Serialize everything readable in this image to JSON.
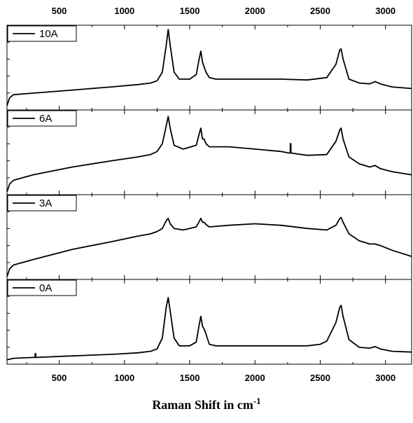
{
  "chart_data": {
    "type": "line",
    "xlabel_main": "Raman Shift in cm",
    "xlabel_sup": "-1",
    "xlim": [
      100,
      3200
    ],
    "xticks": [
      500,
      1000,
      1500,
      2000,
      2500,
      3000
    ],
    "grid": false,
    "legend_placement": "top-left",
    "panels": [
      {
        "name": "10A",
        "points": [
          [
            100,
            0.02
          ],
          [
            120,
            0.12
          ],
          [
            150,
            0.16
          ],
          [
            300,
            0.18
          ],
          [
            600,
            0.22
          ],
          [
            900,
            0.26
          ],
          [
            1100,
            0.29
          ],
          [
            1200,
            0.31
          ],
          [
            1250,
            0.34
          ],
          [
            1290,
            0.45
          ],
          [
            1320,
            0.8
          ],
          [
            1335,
            1.0
          ],
          [
            1350,
            0.8
          ],
          [
            1380,
            0.45
          ],
          [
            1420,
            0.36
          ],
          [
            1500,
            0.36
          ],
          [
            1550,
            0.42
          ],
          [
            1570,
            0.6
          ],
          [
            1585,
            0.72
          ],
          [
            1598,
            0.58
          ],
          [
            1610,
            0.52
          ],
          [
            1625,
            0.45
          ],
          [
            1650,
            0.38
          ],
          [
            1700,
            0.36
          ],
          [
            1800,
            0.36
          ],
          [
            2000,
            0.36
          ],
          [
            2200,
            0.36
          ],
          [
            2400,
            0.35
          ],
          [
            2550,
            0.38
          ],
          [
            2620,
            0.55
          ],
          [
            2650,
            0.74
          ],
          [
            2660,
            0.75
          ],
          [
            2675,
            0.62
          ],
          [
            2720,
            0.36
          ],
          [
            2800,
            0.31
          ],
          [
            2880,
            0.3
          ],
          [
            2920,
            0.33
          ],
          [
            2960,
            0.3
          ],
          [
            3050,
            0.26
          ],
          [
            3200,
            0.24
          ]
        ]
      },
      {
        "name": "6A",
        "points": [
          [
            100,
            0.0
          ],
          [
            120,
            0.1
          ],
          [
            150,
            0.15
          ],
          [
            300,
            0.22
          ],
          [
            600,
            0.32
          ],
          [
            900,
            0.4
          ],
          [
            1100,
            0.45
          ],
          [
            1200,
            0.48
          ],
          [
            1250,
            0.52
          ],
          [
            1290,
            0.62
          ],
          [
            1320,
            0.85
          ],
          [
            1335,
            0.97
          ],
          [
            1350,
            0.82
          ],
          [
            1380,
            0.6
          ],
          [
            1450,
            0.55
          ],
          [
            1550,
            0.6
          ],
          [
            1570,
            0.73
          ],
          [
            1585,
            0.82
          ],
          [
            1598,
            0.68
          ],
          [
            1610,
            0.68
          ],
          [
            1625,
            0.62
          ],
          [
            1650,
            0.58
          ],
          [
            1800,
            0.58
          ],
          [
            2000,
            0.55
          ],
          [
            2200,
            0.52
          ],
          [
            2260,
            0.5
          ],
          [
            2270,
            0.5
          ],
          [
            2271,
            0.62
          ],
          [
            2275,
            0.62
          ],
          [
            2276,
            0.5
          ],
          [
            2400,
            0.47
          ],
          [
            2550,
            0.48
          ],
          [
            2620,
            0.65
          ],
          [
            2650,
            0.8
          ],
          [
            2660,
            0.82
          ],
          [
            2675,
            0.68
          ],
          [
            2720,
            0.45
          ],
          [
            2800,
            0.36
          ],
          [
            2880,
            0.32
          ],
          [
            2920,
            0.34
          ],
          [
            2960,
            0.3
          ],
          [
            3050,
            0.26
          ],
          [
            3200,
            0.22
          ]
        ]
      },
      {
        "name": "3A",
        "points": [
          [
            100,
            0.0
          ],
          [
            120,
            0.1
          ],
          [
            150,
            0.15
          ],
          [
            300,
            0.22
          ],
          [
            600,
            0.35
          ],
          [
            900,
            0.45
          ],
          [
            1100,
            0.52
          ],
          [
            1200,
            0.55
          ],
          [
            1250,
            0.58
          ],
          [
            1290,
            0.62
          ],
          [
            1320,
            0.72
          ],
          [
            1335,
            0.75
          ],
          [
            1350,
            0.68
          ],
          [
            1380,
            0.62
          ],
          [
            1450,
            0.6
          ],
          [
            1550,
            0.64
          ],
          [
            1570,
            0.7
          ],
          [
            1585,
            0.75
          ],
          [
            1598,
            0.7
          ],
          [
            1610,
            0.7
          ],
          [
            1625,
            0.67
          ],
          [
            1650,
            0.64
          ],
          [
            1800,
            0.66
          ],
          [
            2000,
            0.68
          ],
          [
            2200,
            0.66
          ],
          [
            2400,
            0.62
          ],
          [
            2550,
            0.6
          ],
          [
            2620,
            0.66
          ],
          [
            2650,
            0.75
          ],
          [
            2660,
            0.76
          ],
          [
            2675,
            0.7
          ],
          [
            2720,
            0.55
          ],
          [
            2800,
            0.46
          ],
          [
            2880,
            0.42
          ],
          [
            2920,
            0.42
          ],
          [
            2960,
            0.4
          ],
          [
            3050,
            0.34
          ],
          [
            3200,
            0.26
          ]
        ]
      },
      {
        "name": "0A",
        "points": [
          [
            100,
            0.02
          ],
          [
            150,
            0.04
          ],
          [
            300,
            0.05
          ],
          [
            315,
            0.05
          ],
          [
            316,
            0.1
          ],
          [
            320,
            0.1
          ],
          [
            321,
            0.05
          ],
          [
            600,
            0.07
          ],
          [
            900,
            0.09
          ],
          [
            1100,
            0.11
          ],
          [
            1200,
            0.13
          ],
          [
            1250,
            0.16
          ],
          [
            1290,
            0.3
          ],
          [
            1320,
            0.7
          ],
          [
            1335,
            0.82
          ],
          [
            1350,
            0.65
          ],
          [
            1380,
            0.3
          ],
          [
            1420,
            0.2
          ],
          [
            1500,
            0.2
          ],
          [
            1550,
            0.25
          ],
          [
            1570,
            0.45
          ],
          [
            1585,
            0.58
          ],
          [
            1598,
            0.45
          ],
          [
            1610,
            0.42
          ],
          [
            1625,
            0.35
          ],
          [
            1650,
            0.22
          ],
          [
            1700,
            0.2
          ],
          [
            2000,
            0.2
          ],
          [
            2200,
            0.2
          ],
          [
            2400,
            0.2
          ],
          [
            2500,
            0.22
          ],
          [
            2550,
            0.26
          ],
          [
            2620,
            0.5
          ],
          [
            2650,
            0.7
          ],
          [
            2660,
            0.72
          ],
          [
            2675,
            0.58
          ],
          [
            2720,
            0.28
          ],
          [
            2800,
            0.18
          ],
          [
            2880,
            0.17
          ],
          [
            2920,
            0.19
          ],
          [
            2960,
            0.16
          ],
          [
            3050,
            0.13
          ],
          [
            3200,
            0.12
          ]
        ]
      }
    ]
  }
}
